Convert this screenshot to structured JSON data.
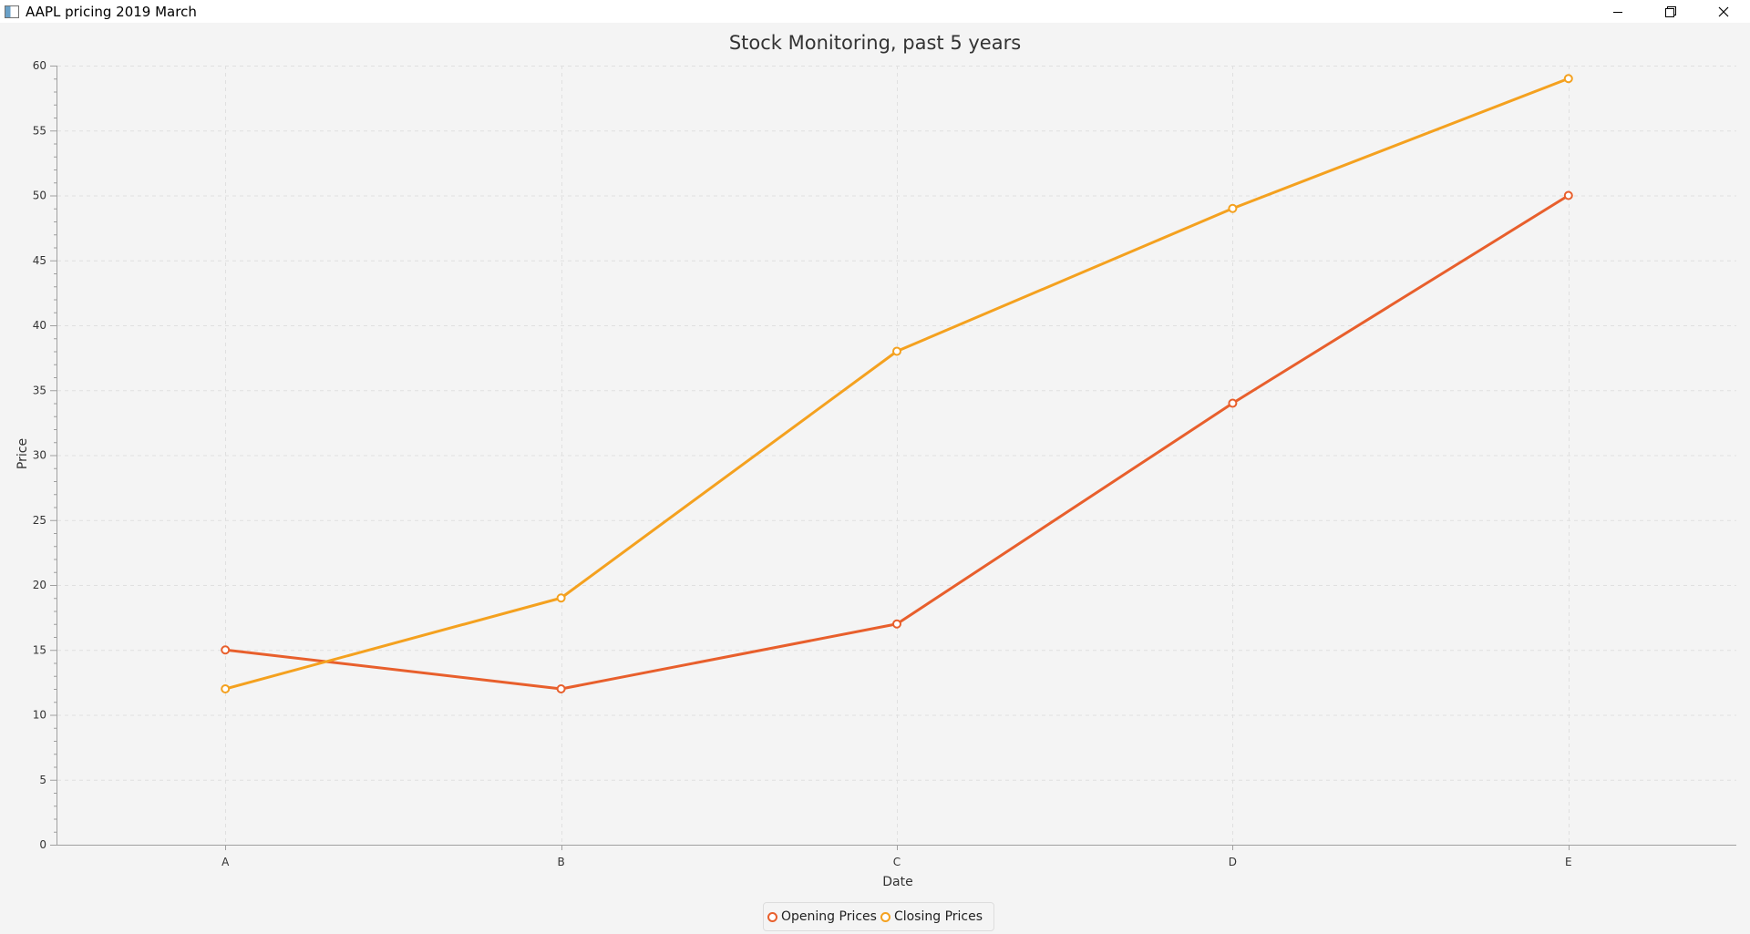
{
  "window": {
    "title": "AAPL pricing 2019 March",
    "controls": {
      "minimize_icon": "minimize-icon",
      "restore_icon": "restore-icon",
      "close_icon": "close-icon"
    }
  },
  "colors": {
    "opening": "#e85f2c",
    "closing": "#f4a11f",
    "background": "#f4f4f4",
    "grid": "#e0e0e0"
  },
  "chart_data": {
    "type": "line",
    "title": "Stock Monitoring, past 5 years",
    "xlabel": "Date",
    "ylabel": "Price",
    "categories": [
      "A",
      "B",
      "C",
      "D",
      "E"
    ],
    "ylim": [
      0,
      60
    ],
    "y_ticks": [
      0,
      5,
      10,
      15,
      20,
      25,
      30,
      35,
      40,
      45,
      50,
      55,
      60
    ],
    "grid": true,
    "legend_position": "bottom-center",
    "series": [
      {
        "name": "Opening Prices",
        "values": [
          15,
          12,
          17,
          34,
          50
        ]
      },
      {
        "name": "Closing Prices",
        "values": [
          12,
          19,
          38,
          49,
          59
        ]
      }
    ]
  }
}
